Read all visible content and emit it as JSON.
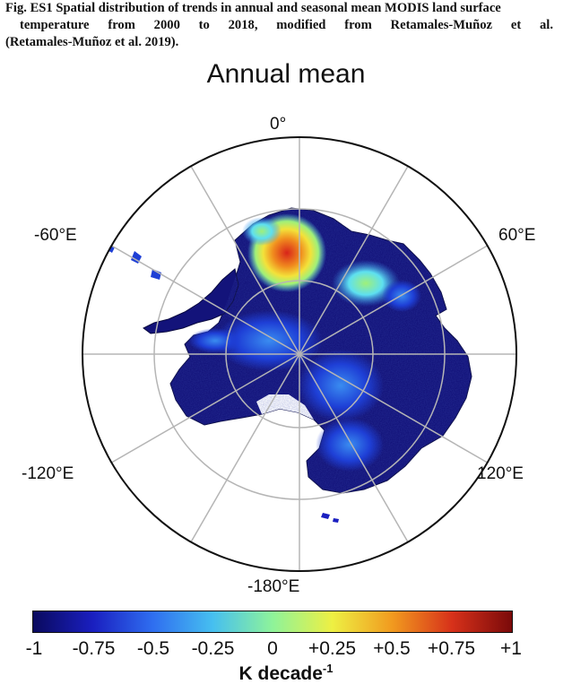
{
  "caption": {
    "line1": "Fig. ES1 Spatial distribution of trends in annual and seasonal mean MODIS land surface",
    "line2": "temperature from 2000 to 2018, modified from Retamales-Muñoz et al.",
    "line3": "(Retamales-Muñoz et al. 2019)."
  },
  "map": {
    "title": "Annual mean",
    "longitude_labels": {
      "top": "0°",
      "upper_left": "-60°E",
      "upper_right": "60°E",
      "lower_left": "-120°E",
      "lower_right": "120°E",
      "bottom": "-180°E"
    },
    "colors": {
      "deep_blue": "#13137a",
      "blue": "#1e3fd6",
      "light_blue": "#3a8cf0",
      "cyan": "#5ee0f0",
      "green": "#9ff07a",
      "yellow": "#f3e23a",
      "orange": "#f08a1e",
      "red": "#d8241a"
    }
  },
  "colorbar": {
    "ticks": [
      "-1",
      "-0.75",
      "-0.5",
      "-0.25",
      "0",
      "+0.25",
      "+0.5",
      "+0.75",
      "+1"
    ],
    "range": [
      -1,
      1
    ],
    "label_main": "K decade",
    "label_exp": "-1",
    "gradient_stops": [
      "#0a0a5e",
      "#1a1fc0",
      "#2f6ef0",
      "#46bff0",
      "#8ef39a",
      "#eef043",
      "#f19a1f",
      "#d7311a",
      "#7a0a0a"
    ]
  }
}
